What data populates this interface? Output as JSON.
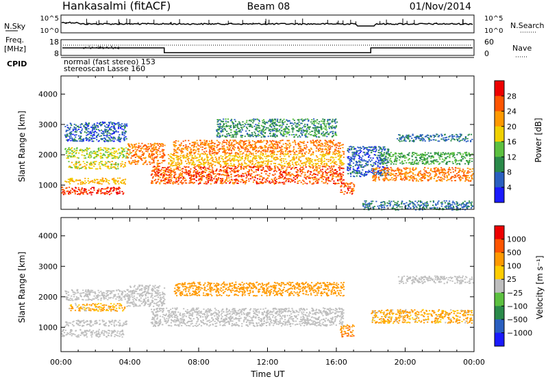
{
  "header": {
    "station": "Hankasalmi (fitACF)",
    "beam": "Beam 08",
    "date": "01/Nov/2014"
  },
  "noise_panel": {
    "left_label": "N.Sky",
    "right_label": "N.Search",
    "left_ticks": [
      "10^5",
      "10^0"
    ],
    "right_ticks": [
      "10^5",
      "10^0"
    ]
  },
  "freq_panel": {
    "left_label_1": "Freq.",
    "left_label_2": "[MHz]",
    "left_ticks": [
      "18",
      "8"
    ],
    "right_label": "Nave",
    "right_ticks": [
      "60",
      "0"
    ],
    "cpid_label": "CPID",
    "cpid_lines": [
      "normal (fast stereo) 153",
      "stereoscan Lasse 160"
    ]
  },
  "power_panel": {
    "ylabel": "Slant Range [km]",
    "yticks": [
      "4000",
      "3000",
      "2000",
      "1000"
    ],
    "colorbar_label": "Power [dB]",
    "colorbar_ticks": [
      "28",
      "24",
      "20",
      "16",
      "12",
      "8",
      "4"
    ],
    "colors": [
      "#1a1aff",
      "#2a5fc0",
      "#2a8a4a",
      "#5cc040",
      "#f0d000",
      "#ff9900",
      "#ff5500",
      "#ee0000"
    ]
  },
  "velocity_panel": {
    "ylabel": "Slant Range [km]",
    "yticks": [
      "4000",
      "3000",
      "2000",
      "1000"
    ],
    "colorbar_label": "Velocity [m s⁻¹]",
    "colorbar_ticks": [
      "1000",
      "500",
      "100",
      "25",
      "−25",
      "−100",
      "−500",
      "−1000"
    ],
    "colors": [
      "#1a1aff",
      "#2a5fc0",
      "#2a8a4a",
      "#5cc040",
      "#bebebe",
      "#ffcc00",
      "#ff9900",
      "#ff5500",
      "#ee0000"
    ],
    "ground_scatter_color": "#bebebe"
  },
  "xaxis": {
    "ticks": [
      "00:00",
      "04:00",
      "08:00",
      "12:00",
      "16:00",
      "20:00",
      "00:00"
    ],
    "label": "Time UT"
  },
  "chart_data": {
    "type": "heatmap",
    "title": "Hankasalmi (fitACF) Beam 08 01/Nov/2014",
    "xlabel": "Time UT",
    "ylabel": "Slant Range [km]",
    "x_range_hours": [
      0,
      24
    ],
    "y_range_km": [
      200,
      4600
    ],
    "power_scale_db": [
      0,
      32
    ],
    "velocity_scale_ms": [
      -1000,
      1000
    ],
    "power_bands": [
      {
        "t0": 0.0,
        "t1": 3.6,
        "r0": 700,
        "r1": 950,
        "power": 28
      },
      {
        "t0": 0.2,
        "t1": 3.8,
        "r0": 1050,
        "r1": 1250,
        "power": 20
      },
      {
        "t0": 0.4,
        "t1": 3.7,
        "r0": 1550,
        "r1": 1800,
        "power": 18
      },
      {
        "t0": 0.2,
        "t1": 4.0,
        "r0": 1900,
        "r1": 2250,
        "power": 16
      },
      {
        "t0": 0.2,
        "t1": 3.8,
        "r0": 2450,
        "r1": 3100,
        "power": 6
      },
      {
        "t0": 3.8,
        "t1": 6.0,
        "r0": 1700,
        "r1": 2400,
        "power": 24
      },
      {
        "t0": 5.2,
        "t1": 16.4,
        "r0": 1050,
        "r1": 1650,
        "power": 26
      },
      {
        "t0": 6.2,
        "t1": 16.4,
        "r0": 1650,
        "r1": 2050,
        "power": 20
      },
      {
        "t0": 6.5,
        "t1": 16.4,
        "r0": 2050,
        "r1": 2500,
        "power": 24
      },
      {
        "t0": 9.0,
        "t1": 16.0,
        "r0": 2600,
        "r1": 3200,
        "power": 10
      },
      {
        "t0": 16.2,
        "t1": 17.0,
        "r0": 700,
        "r1": 1100,
        "power": 26
      },
      {
        "t0": 16.6,
        "t1": 19.0,
        "r0": 1300,
        "r1": 2300,
        "power": 6
      },
      {
        "t0": 18.0,
        "t1": 23.9,
        "r0": 1150,
        "r1": 1600,
        "power": 24
      },
      {
        "t0": 18.5,
        "t1": 23.9,
        "r0": 1700,
        "r1": 2100,
        "power": 12
      },
      {
        "t0": 19.5,
        "t1": 23.9,
        "r0": 2450,
        "r1": 2700,
        "power": 8
      },
      {
        "t0": 17.5,
        "t1": 23.9,
        "r0": 200,
        "r1": 500,
        "power": 8
      }
    ],
    "velocity_bands": [
      {
        "t0": 0.0,
        "t1": 3.6,
        "r0": 700,
        "r1": 950,
        "velocity": 0,
        "ground_scatter": true
      },
      {
        "t0": 0.2,
        "t1": 3.8,
        "r0": 1050,
        "r1": 1250,
        "velocity": 0,
        "ground_scatter": true
      },
      {
        "t0": 0.4,
        "t1": 3.7,
        "r0": 1550,
        "r1": 1800,
        "velocity": -150,
        "ground_scatter": false
      },
      {
        "t0": 0.2,
        "t1": 4.0,
        "r0": 1900,
        "r1": 2250,
        "velocity": 0,
        "ground_scatter": true
      },
      {
        "t0": 3.8,
        "t1": 6.0,
        "r0": 1700,
        "r1": 2400,
        "velocity": 0,
        "ground_scatter": true
      },
      {
        "t0": 5.2,
        "t1": 16.4,
        "r0": 1050,
        "r1": 1650,
        "velocity": 0,
        "ground_scatter": true
      },
      {
        "t0": 6.5,
        "t1": 16.4,
        "r0": 2050,
        "r1": 2500,
        "velocity": -300,
        "ground_scatter": false
      },
      {
        "t0": 16.2,
        "t1": 17.0,
        "r0": 700,
        "r1": 1100,
        "velocity": -400,
        "ground_scatter": false
      },
      {
        "t0": 18.0,
        "t1": 23.9,
        "r0": 1150,
        "r1": 1600,
        "velocity": -150,
        "ground_scatter": false
      },
      {
        "t0": 19.5,
        "t1": 23.9,
        "r0": 2450,
        "r1": 2700,
        "velocity": 0,
        "ground_scatter": true
      }
    ],
    "cpid_change_hours": [
      6.0,
      18.0
    ]
  }
}
